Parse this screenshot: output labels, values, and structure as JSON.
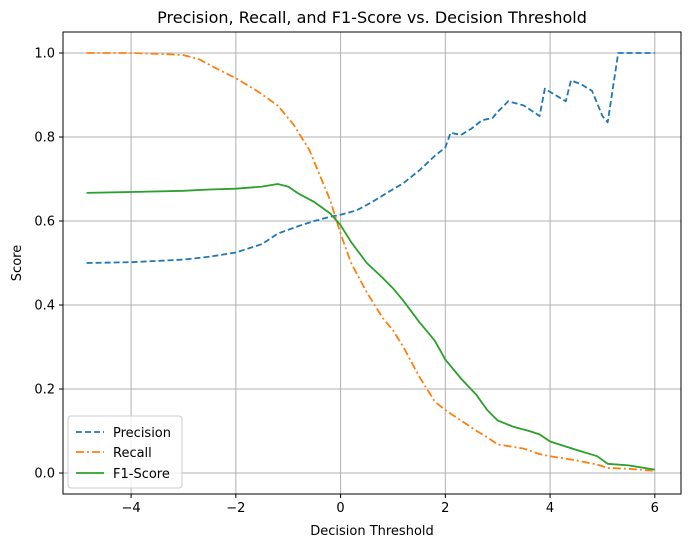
{
  "chart_data": {
    "type": "line",
    "title": "Precision, Recall, and F1-Score vs. Decision Threshold",
    "xlabel": "Decision Threshold",
    "ylabel": "Score",
    "xlim": [
      -5.3,
      6.5
    ],
    "ylim": [
      -0.05,
      1.05
    ],
    "xticks": [
      -4,
      -2,
      0,
      2,
      4,
      6
    ],
    "xtick_labels": [
      "−4",
      "−2",
      "0",
      "2",
      "4",
      "6"
    ],
    "yticks": [
      0.0,
      0.2,
      0.4,
      0.6,
      0.8,
      1.0
    ],
    "ytick_labels": [
      "0.0",
      "0.2",
      "0.4",
      "0.6",
      "0.8",
      "1.0"
    ],
    "grid": true,
    "legend_position": "lower-left",
    "series": [
      {
        "name": "Precision",
        "color": "#1f77b4",
        "linestyle": "dashed",
        "x": [
          -4.85,
          -4.0,
          -3.0,
          -2.5,
          -2.0,
          -1.5,
          -1.2,
          -0.8,
          -0.5,
          -0.2,
          0.0,
          0.3,
          0.6,
          0.9,
          1.2,
          1.5,
          1.8,
          2.0,
          2.1,
          2.3,
          2.5,
          2.7,
          2.9,
          3.0,
          3.2,
          3.5,
          3.8,
          3.9,
          4.1,
          4.3,
          4.4,
          4.6,
          4.8,
          5.0,
          5.1,
          5.3,
          5.6,
          6.0
        ],
        "y": [
          0.5,
          0.502,
          0.508,
          0.515,
          0.525,
          0.545,
          0.57,
          0.588,
          0.6,
          0.61,
          0.615,
          0.625,
          0.645,
          0.668,
          0.69,
          0.72,
          0.755,
          0.775,
          0.81,
          0.805,
          0.82,
          0.84,
          0.845,
          0.86,
          0.885,
          0.875,
          0.85,
          0.915,
          0.9,
          0.885,
          0.935,
          0.925,
          0.91,
          0.85,
          0.835,
          1.0,
          1.0,
          1.0
        ]
      },
      {
        "name": "Recall",
        "color": "#ff7f0e",
        "linestyle": "dashdot",
        "x": [
          -4.85,
          -4.0,
          -3.5,
          -3.0,
          -2.7,
          -2.4,
          -2.0,
          -1.6,
          -1.2,
          -0.9,
          -0.6,
          -0.4,
          -0.2,
          0.0,
          0.2,
          0.5,
          0.8,
          1.0,
          1.2,
          1.5,
          1.8,
          2.0,
          2.3,
          2.6,
          2.8,
          3.0,
          3.5,
          3.8,
          4.0,
          4.5,
          4.9,
          5.1,
          5.5,
          6.0
        ],
        "y": [
          1.0,
          1.0,
          0.998,
          0.995,
          0.985,
          0.965,
          0.94,
          0.91,
          0.875,
          0.83,
          0.77,
          0.71,
          0.65,
          0.57,
          0.5,
          0.43,
          0.37,
          0.34,
          0.3,
          0.23,
          0.17,
          0.15,
          0.125,
          0.1,
          0.085,
          0.068,
          0.058,
          0.045,
          0.04,
          0.03,
          0.02,
          0.012,
          0.01,
          0.005
        ]
      },
      {
        "name": "F1-Score",
        "color": "#2ca02c",
        "linestyle": "solid",
        "x": [
          -4.85,
          -4.0,
          -3.0,
          -2.5,
          -2.0,
          -1.5,
          -1.2,
          -1.0,
          -0.8,
          -0.5,
          -0.2,
          0.0,
          0.2,
          0.5,
          0.8,
          1.0,
          1.2,
          1.5,
          1.8,
          2.0,
          2.3,
          2.6,
          2.8,
          3.0,
          3.3,
          3.6,
          3.8,
          4.0,
          4.5,
          4.9,
          5.1,
          5.5,
          6.0
        ],
        "y": [
          0.667,
          0.669,
          0.672,
          0.675,
          0.677,
          0.682,
          0.688,
          0.682,
          0.665,
          0.645,
          0.618,
          0.59,
          0.55,
          0.5,
          0.465,
          0.44,
          0.41,
          0.36,
          0.315,
          0.27,
          0.225,
          0.185,
          0.15,
          0.125,
          0.11,
          0.1,
          0.092,
          0.075,
          0.055,
          0.04,
          0.022,
          0.018,
          0.008
        ]
      }
    ]
  }
}
